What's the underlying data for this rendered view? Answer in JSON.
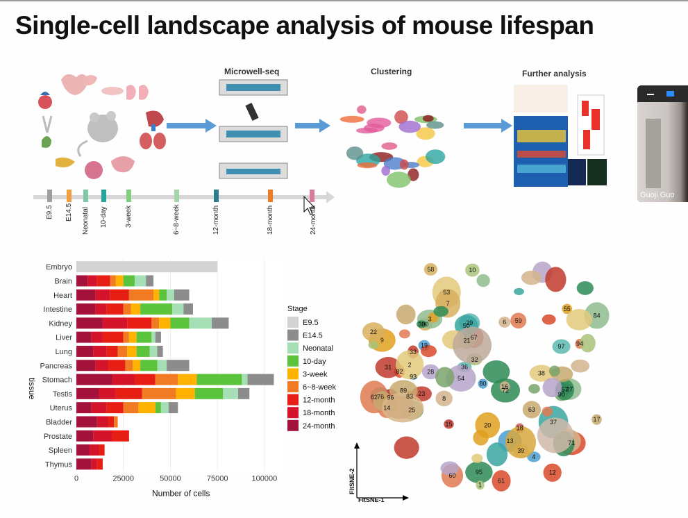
{
  "slide": {
    "title": "Single-cell landscape analysis of mouse lifespan",
    "pipeline": {
      "step1": "Microwell-seq",
      "step2": "Clustering",
      "step3": "Further analysis"
    },
    "timeline": [
      "E9.5",
      "E14.5",
      "Neonatal",
      "10-day",
      "3-week",
      "6~8-week",
      "12-month",
      "18-month",
      "24-month"
    ]
  },
  "video": {
    "participant": "Guoji Guo"
  },
  "colors": {
    "E9.5": "#d3d3d3",
    "E14.5": "#8c8c8c",
    "Neonatal": "#a6dfb5",
    "10-day": "#5cc43c",
    "3-week": "#ffb300",
    "6~8-week": "#f07b22",
    "12-month": "#e61e14",
    "18-month": "#d4142a",
    "24-month": "#a3123a"
  },
  "chart_data": {
    "type": "bar",
    "orientation": "horizontal",
    "stacked": true,
    "xlabel": "Number of cells",
    "ylabel": "tissue",
    "xlim": [
      0,
      110000
    ],
    "xticks": [
      "0",
      "25000",
      "50000",
      "75000",
      "100000"
    ],
    "xtick_values": [
      0,
      25000,
      50000,
      75000,
      100000
    ],
    "legend_title": "Stage",
    "categories": [
      "Embryo",
      "Brain",
      "Heart",
      "Intestine",
      "Kidney",
      "Liver",
      "Lung",
      "Pancreas",
      "Stomach",
      "Testis",
      "Uterus",
      "Bladder",
      "Prostate",
      "Spleen",
      "Thymus"
    ],
    "series": [
      {
        "name": "E9.5",
        "values": [
          75000,
          0,
          0,
          0,
          0,
          0,
          0,
          0,
          0,
          0,
          0,
          0,
          0,
          0,
          0
        ]
      },
      {
        "name": "E14.5",
        "values": [
          0,
          4000,
          8000,
          5000,
          9000,
          3000,
          3000,
          12000,
          14000,
          6000,
          5000,
          0,
          0,
          0,
          0
        ]
      },
      {
        "name": "Neonatal",
        "values": [
          0,
          6000,
          4000,
          6000,
          12000,
          2000,
          4000,
          5000,
          3000,
          8000,
          4000,
          0,
          0,
          0,
          0
        ]
      },
      {
        "name": "10-day",
        "values": [
          0,
          6000,
          4000,
          17000,
          10000,
          8000,
          7000,
          9000,
          24000,
          15000,
          3000,
          0,
          0,
          0,
          0
        ]
      },
      {
        "name": "3-week",
        "values": [
          0,
          4000,
          3000,
          5000,
          6000,
          4000,
          5000,
          4000,
          10000,
          10000,
          9000,
          0,
          0,
          0,
          0
        ]
      },
      {
        "name": "6~8-week",
        "values": [
          0,
          3000,
          13000,
          4000,
          4000,
          3000,
          5000,
          4000,
          12000,
          18000,
          8000,
          2000,
          0,
          0,
          0
        ]
      },
      {
        "name": "12-month",
        "values": [
          0,
          7000,
          10000,
          9000,
          13000,
          11000,
          6000,
          9000,
          11000,
          14000,
          9000,
          3000,
          9000,
          3000,
          3000
        ]
      },
      {
        "name": "18-month",
        "values": [
          0,
          5000,
          8000,
          6000,
          13000,
          6000,
          7000,
          7000,
          12000,
          9000,
          8000,
          6000,
          10000,
          5000,
          3000
        ]
      },
      {
        "name": "24-month",
        "values": [
          0,
          6000,
          10000,
          10000,
          14000,
          8000,
          9000,
          10000,
          19000,
          12000,
          8000,
          11000,
          9000,
          7000,
          8000
        ]
      }
    ]
  },
  "tsne": {
    "xlabel": "FItSNE-1",
    "ylabel": "FItSNE-2",
    "cluster_labels": [
      "82",
      "83",
      "30",
      "67",
      "29",
      "72",
      "37",
      "25",
      "12",
      "19",
      "15",
      "61",
      "3",
      "63",
      "27",
      "97",
      "14",
      "20",
      "95",
      "84",
      "32",
      "13",
      "1",
      "30",
      "76",
      "71",
      "38",
      "58",
      "16",
      "9",
      "36",
      "90",
      "6",
      "21",
      "93",
      "96",
      "10",
      "17",
      "18",
      "23",
      "33",
      "53",
      "62",
      "31",
      "22",
      "54",
      "7",
      "2",
      "57",
      "50",
      "39",
      "94",
      "4",
      "60",
      "59",
      "55",
      "28",
      "80",
      "89",
      "8"
    ]
  }
}
